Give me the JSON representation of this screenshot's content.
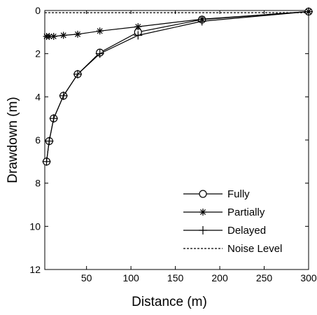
{
  "chart_data": {
    "type": "line",
    "title": "",
    "xlabel": "Distance (m)",
    "ylabel": "Drawdown (m)",
    "xlim": [
      3,
      300
    ],
    "ylim": [
      0,
      12
    ],
    "y_inverted": true,
    "x_ticks": [
      50,
      100,
      150,
      200,
      250,
      300
    ],
    "y_ticks": [
      0,
      2,
      4,
      6,
      8,
      10,
      12
    ],
    "grid": false,
    "legend_position": "bottom-right",
    "series": [
      {
        "name": "Fully",
        "marker": "circle",
        "line_style": "solid",
        "x": [
          5,
          8,
          13,
          24,
          40,
          65,
          108,
          180,
          300
        ],
        "y": [
          7.0,
          6.05,
          5.0,
          3.95,
          2.95,
          1.95,
          1.0,
          0.42,
          0.05
        ]
      },
      {
        "name": "Partially",
        "marker": "star",
        "line_style": "solid",
        "x": [
          5,
          8,
          13,
          24,
          40,
          65,
          108,
          180,
          300
        ],
        "y": [
          1.2,
          1.2,
          1.2,
          1.15,
          1.1,
          0.95,
          0.75,
          0.4,
          0.05
        ]
      },
      {
        "name": "Delayed",
        "marker": "plus",
        "line_style": "solid",
        "x": [
          5,
          8,
          13,
          24,
          40,
          65,
          108,
          180,
          300
        ],
        "y": [
          7.0,
          6.05,
          5.0,
          3.95,
          2.95,
          2.0,
          1.15,
          0.5,
          0.05
        ]
      },
      {
        "name": "Noise Level",
        "marker": "none",
        "line_style": "dashed",
        "x": [
          3,
          300
        ],
        "y": [
          0.1,
          0.1
        ]
      }
    ]
  }
}
